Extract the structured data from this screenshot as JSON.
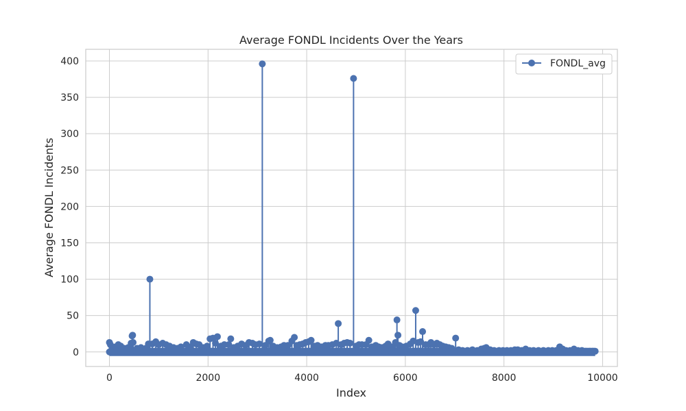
{
  "chart_data": {
    "type": "line",
    "title": "Average FONDL Incidents Over the Years",
    "xlabel": "Index",
    "ylabel": "Average FONDL Incidents",
    "xlim": [
      -480,
      10300
    ],
    "ylim": [
      -20,
      416
    ],
    "xticks": [
      0,
      2000,
      4000,
      6000,
      8000,
      10000
    ],
    "yticks": [
      0,
      50,
      100,
      150,
      200,
      250,
      300,
      350,
      400
    ],
    "grid": true,
    "legend": {
      "position": "top-right",
      "entries": [
        "FONDL_avg"
      ]
    },
    "colors": {
      "series": "#4c72b0",
      "grid": "#cccccc",
      "axes_edge": "#cccccc",
      "text": "#262626"
    },
    "series": [
      {
        "name": "FONDL_avg",
        "peaks": [
          [
            0,
            13
          ],
          [
            20,
            10
          ],
          [
            60,
            5
          ],
          [
            120,
            7
          ],
          [
            180,
            10
          ],
          [
            230,
            8
          ],
          [
            300,
            5
          ],
          [
            380,
            6
          ],
          [
            440,
            12
          ],
          [
            460,
            22
          ],
          [
            470,
            23
          ],
          [
            480,
            13
          ],
          [
            560,
            5
          ],
          [
            640,
            6
          ],
          [
            740,
            5
          ],
          [
            790,
            11
          ],
          [
            820,
            100
          ],
          [
            870,
            11
          ],
          [
            940,
            14
          ],
          [
            1000,
            10
          ],
          [
            1080,
            12
          ],
          [
            1150,
            10
          ],
          [
            1220,
            8
          ],
          [
            1300,
            6
          ],
          [
            1380,
            5
          ],
          [
            1450,
            7
          ],
          [
            1560,
            10
          ],
          [
            1640,
            7
          ],
          [
            1700,
            13
          ],
          [
            1760,
            11
          ],
          [
            1820,
            10
          ],
          [
            1900,
            6
          ],
          [
            1980,
            8
          ],
          [
            2040,
            18
          ],
          [
            2100,
            19
          ],
          [
            2150,
            12
          ],
          [
            2190,
            21
          ],
          [
            2260,
            8
          ],
          [
            2330,
            10
          ],
          [
            2420,
            10
          ],
          [
            2460,
            18
          ],
          [
            2520,
            6
          ],
          [
            2600,
            8
          ],
          [
            2680,
            11
          ],
          [
            2760,
            9
          ],
          [
            2830,
            13
          ],
          [
            2900,
            12
          ],
          [
            2960,
            10
          ],
          [
            3040,
            11
          ],
          [
            3100,
            396
          ],
          [
            3160,
            9
          ],
          [
            3230,
            15
          ],
          [
            3260,
            16
          ],
          [
            3320,
            8
          ],
          [
            3400,
            6
          ],
          [
            3480,
            7
          ],
          [
            3540,
            9
          ],
          [
            3620,
            9
          ],
          [
            3700,
            15
          ],
          [
            3750,
            20
          ],
          [
            3800,
            9
          ],
          [
            3860,
            10
          ],
          [
            3920,
            11
          ],
          [
            3980,
            13
          ],
          [
            4040,
            14
          ],
          [
            4090,
            16
          ],
          [
            4150,
            8
          ],
          [
            4220,
            9
          ],
          [
            4300,
            7
          ],
          [
            4380,
            9
          ],
          [
            4440,
            9
          ],
          [
            4520,
            10
          ],
          [
            4600,
            12
          ],
          [
            4640,
            39
          ],
          [
            4700,
            10
          ],
          [
            4760,
            12
          ],
          [
            4820,
            13
          ],
          [
            4880,
            12
          ],
          [
            4950,
            376
          ],
          [
            5000,
            8
          ],
          [
            5060,
            10
          ],
          [
            5120,
            10
          ],
          [
            5200,
            10
          ],
          [
            5260,
            16
          ],
          [
            5320,
            7
          ],
          [
            5400,
            9
          ],
          [
            5460,
            7
          ],
          [
            5530,
            6
          ],
          [
            5600,
            8
          ],
          [
            5650,
            11
          ],
          [
            5720,
            7
          ],
          [
            5800,
            13
          ],
          [
            5830,
            44
          ],
          [
            5850,
            23
          ],
          [
            5880,
            9
          ],
          [
            5940,
            7
          ],
          [
            6020,
            8
          ],
          [
            6100,
            11
          ],
          [
            6160,
            15
          ],
          [
            6210,
            57
          ],
          [
            6260,
            13
          ],
          [
            6310,
            14
          ],
          [
            6350,
            28
          ],
          [
            6410,
            10
          ],
          [
            6470,
            10
          ],
          [
            6520,
            13
          ],
          [
            6580,
            10
          ],
          [
            6640,
            12
          ],
          [
            6700,
            10
          ],
          [
            6760,
            8
          ],
          [
            6820,
            7
          ],
          [
            6880,
            6
          ],
          [
            6940,
            5
          ],
          [
            7020,
            19
          ],
          [
            7080,
            3
          ],
          [
            7160,
            2
          ],
          [
            7260,
            2
          ],
          [
            7360,
            3
          ],
          [
            7460,
            2
          ],
          [
            7540,
            4
          ],
          [
            7600,
            5
          ],
          [
            7640,
            6
          ],
          [
            7720,
            3
          ],
          [
            7800,
            2
          ],
          [
            7900,
            2
          ],
          [
            7980,
            2
          ],
          [
            8060,
            2
          ],
          [
            8140,
            2
          ],
          [
            8220,
            3
          ],
          [
            8280,
            3
          ],
          [
            8360,
            2
          ],
          [
            8440,
            4
          ],
          [
            8520,
            2
          ],
          [
            8600,
            2
          ],
          [
            8700,
            2
          ],
          [
            8800,
            2
          ],
          [
            8900,
            2
          ],
          [
            8980,
            2
          ],
          [
            9060,
            2
          ],
          [
            9130,
            7
          ],
          [
            9190,
            4
          ],
          [
            9260,
            2
          ],
          [
            9340,
            2
          ],
          [
            9420,
            4
          ],
          [
            9500,
            2
          ],
          [
            9580,
            2
          ],
          [
            9660,
            1
          ],
          [
            9740,
            1
          ],
          [
            9800,
            1
          ],
          [
            9850,
            1
          ]
        ]
      }
    ]
  }
}
